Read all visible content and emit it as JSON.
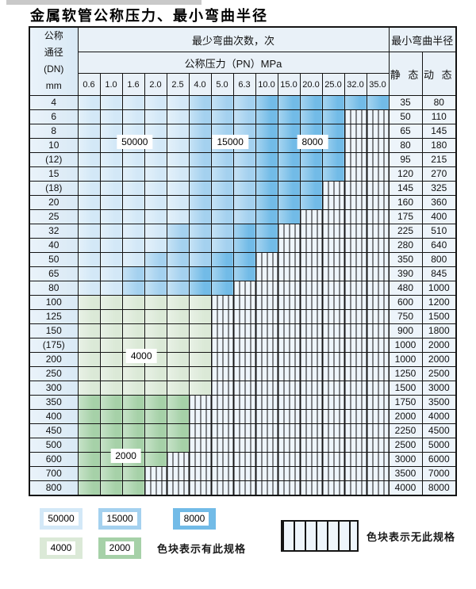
{
  "title": "金属软管公称压力、最小弯曲半径",
  "table": {
    "corner_header_lines": [
      "公称",
      "通径",
      "(DN)",
      "mm"
    ],
    "bend_cycles_header": "最少弯曲次数，次",
    "pressure_header": "公称压力（PN）MPa",
    "pressure_columns": [
      "0.6",
      "1.0",
      "1.6",
      "2.0",
      "2.5",
      "4.0",
      "5.0",
      "6.3",
      "10.0",
      "15.0",
      "20.0",
      "25.0",
      "32.0",
      "35.0"
    ],
    "radius_header": "最小弯曲半径",
    "static_header": "静 态",
    "dynamic_header": "动 态",
    "rows": [
      {
        "dn": "4",
        "bands": [
          {
            "zone": "50000",
            "from": 1,
            "to": 5
          },
          {
            "zone": "15000",
            "from": 6,
            "to": 8
          },
          {
            "zone": "8000",
            "from": 9,
            "to": 14
          }
        ],
        "static": "35",
        "dynamic": "80"
      },
      {
        "dn": "6",
        "bands": [
          {
            "zone": "50000",
            "from": 1,
            "to": 5
          },
          {
            "zone": "15000",
            "from": 6,
            "to": 8
          },
          {
            "zone": "8000",
            "from": 9,
            "to": 12
          }
        ],
        "static": "50",
        "dynamic": "110"
      },
      {
        "dn": "8",
        "bands": [
          {
            "zone": "50000",
            "from": 1,
            "to": 5
          },
          {
            "zone": "15000",
            "from": 6,
            "to": 8
          },
          {
            "zone": "8000",
            "from": 9,
            "to": 12
          }
        ],
        "static": "65",
        "dynamic": "145"
      },
      {
        "dn": "10",
        "bands": [
          {
            "zone": "50000",
            "from": 1,
            "to": 5
          },
          {
            "zone": "15000",
            "from": 6,
            "to": 8
          },
          {
            "zone": "8000",
            "from": 9,
            "to": 12
          }
        ],
        "static": "80",
        "dynamic": "180"
      },
      {
        "dn": "(12)",
        "bands": [
          {
            "zone": "50000",
            "from": 1,
            "to": 5
          },
          {
            "zone": "15000",
            "from": 6,
            "to": 8
          },
          {
            "zone": "8000",
            "from": 9,
            "to": 12
          }
        ],
        "static": "95",
        "dynamic": "215"
      },
      {
        "dn": "15",
        "bands": [
          {
            "zone": "50000",
            "from": 1,
            "to": 5
          },
          {
            "zone": "15000",
            "from": 6,
            "to": 8
          },
          {
            "zone": "8000",
            "from": 9,
            "to": 12
          }
        ],
        "static": "120",
        "dynamic": "270"
      },
      {
        "dn": "(18)",
        "bands": [
          {
            "zone": "50000",
            "from": 1,
            "to": 5
          },
          {
            "zone": "15000",
            "from": 6,
            "to": 8
          },
          {
            "zone": "8000",
            "from": 9,
            "to": 11
          }
        ],
        "static": "145",
        "dynamic": "325"
      },
      {
        "dn": "20",
        "bands": [
          {
            "zone": "50000",
            "from": 1,
            "to": 5
          },
          {
            "zone": "15000",
            "from": 6,
            "to": 8
          },
          {
            "zone": "8000",
            "from": 9,
            "to": 11
          }
        ],
        "static": "160",
        "dynamic": "360"
      },
      {
        "dn": "25",
        "bands": [
          {
            "zone": "50000",
            "from": 1,
            "to": 5
          },
          {
            "zone": "15000",
            "from": 6,
            "to": 8
          },
          {
            "zone": "8000",
            "from": 9,
            "to": 10
          }
        ],
        "static": "175",
        "dynamic": "400"
      },
      {
        "dn": "32",
        "bands": [
          {
            "zone": "50000",
            "from": 1,
            "to": 4
          },
          {
            "zone": "15000",
            "from": 5,
            "to": 7
          },
          {
            "zone": "8000",
            "from": 8,
            "to": 9
          }
        ],
        "static": "225",
        "dynamic": "510"
      },
      {
        "dn": "40",
        "bands": [
          {
            "zone": "50000",
            "from": 1,
            "to": 4
          },
          {
            "zone": "15000",
            "from": 5,
            "to": 7
          },
          {
            "zone": "8000",
            "from": 8,
            "to": 9
          }
        ],
        "static": "280",
        "dynamic": "640"
      },
      {
        "dn": "50",
        "bands": [
          {
            "zone": "50000",
            "from": 1,
            "to": 3
          },
          {
            "zone": "15000",
            "from": 4,
            "to": 6
          },
          {
            "zone": "8000",
            "from": 7,
            "to": 8
          }
        ],
        "static": "350",
        "dynamic": "800"
      },
      {
        "dn": "65",
        "bands": [
          {
            "zone": "50000",
            "from": 1,
            "to": 2
          },
          {
            "zone": "15000",
            "from": 3,
            "to": 5
          },
          {
            "zone": "8000",
            "from": 6,
            "to": 8
          }
        ],
        "static": "390",
        "dynamic": "845"
      },
      {
        "dn": "80",
        "bands": [
          {
            "zone": "50000",
            "from": 1,
            "to": 2
          },
          {
            "zone": "15000",
            "from": 3,
            "to": 5
          },
          {
            "zone": "8000",
            "from": 6,
            "to": 7
          }
        ],
        "static": "480",
        "dynamic": "1000"
      },
      {
        "dn": "100",
        "bands": [
          {
            "zone": "4000",
            "from": 1,
            "to": 6
          }
        ],
        "static": "600",
        "dynamic": "1200"
      },
      {
        "dn": "125",
        "bands": [
          {
            "zone": "4000",
            "from": 1,
            "to": 6
          }
        ],
        "static": "750",
        "dynamic": "1500"
      },
      {
        "dn": "150",
        "bands": [
          {
            "zone": "4000",
            "from": 1,
            "to": 6
          }
        ],
        "static": "900",
        "dynamic": "1800"
      },
      {
        "dn": "(175)",
        "bands": [
          {
            "zone": "4000",
            "from": 1,
            "to": 6
          }
        ],
        "static": "1000",
        "dynamic": "2000"
      },
      {
        "dn": "200",
        "bands": [
          {
            "zone": "4000",
            "from": 1,
            "to": 6
          }
        ],
        "static": "1000",
        "dynamic": "2000"
      },
      {
        "dn": "250",
        "bands": [
          {
            "zone": "4000",
            "from": 1,
            "to": 6
          }
        ],
        "static": "1250",
        "dynamic": "2500"
      },
      {
        "dn": "300",
        "bands": [
          {
            "zone": "4000",
            "from": 1,
            "to": 6
          }
        ],
        "static": "1500",
        "dynamic": "3000"
      },
      {
        "dn": "350",
        "bands": [
          {
            "zone": "2000",
            "from": 1,
            "to": 5
          }
        ],
        "static": "1750",
        "dynamic": "3500"
      },
      {
        "dn": "400",
        "bands": [
          {
            "zone": "2000",
            "from": 1,
            "to": 5
          }
        ],
        "static": "2000",
        "dynamic": "4000"
      },
      {
        "dn": "450",
        "bands": [
          {
            "zone": "2000",
            "from": 1,
            "to": 5
          }
        ],
        "static": "2250",
        "dynamic": "4500"
      },
      {
        "dn": "500",
        "bands": [
          {
            "zone": "2000",
            "from": 1,
            "to": 5
          }
        ],
        "static": "2500",
        "dynamic": "5000"
      },
      {
        "dn": "600",
        "bands": [
          {
            "zone": "2000",
            "from": 1,
            "to": 4
          }
        ],
        "static": "3000",
        "dynamic": "6000"
      },
      {
        "dn": "700",
        "bands": [
          {
            "zone": "2000",
            "from": 1,
            "to": 3
          }
        ],
        "static": "3500",
        "dynamic": "7000"
      },
      {
        "dn": "800",
        "bands": [
          {
            "zone": "2000",
            "from": 1,
            "to": 3
          }
        ],
        "static": "4000",
        "dynamic": "8000"
      }
    ]
  },
  "zone_labels": [
    {
      "text": "50000",
      "dn": "10",
      "col": 3.1
    },
    {
      "text": "15000",
      "dn": "10",
      "col": 7.4
    },
    {
      "text": "8000",
      "dn": "10",
      "col": 11.1
    },
    {
      "text": "4000",
      "dn": "200",
      "col": 3.4
    },
    {
      "text": "2000",
      "dn": "600",
      "col": 2.7
    }
  ],
  "legend": {
    "swatches": [
      {
        "label": "50000",
        "zone": "50000",
        "row": 1
      },
      {
        "label": "15000",
        "zone": "15000",
        "row": 1
      },
      {
        "label": "8000",
        "zone": "8000",
        "row": 1
      },
      {
        "label": "4000",
        "zone": "4000",
        "row": 2
      },
      {
        "label": "2000",
        "zone": "2000",
        "row": 2
      }
    ],
    "has_spec_text": "色块表示有此规格",
    "no_spec_text": "色块表示无此规格"
  },
  "colors": {
    "zone_50000": "#d3e8f7",
    "zone_15000": "#a4d1ef",
    "zone_8000": "#72bbe7",
    "zone_4000": "#dbe9d7",
    "zone_2000": "#a6d1a8",
    "hatch_fill": "#eef5fb",
    "grid_line": "#141414",
    "header_bg": "#e9f1f8",
    "dn_col_from": "#eaf3fa",
    "dn_col_to": "#d9e9f5",
    "value_col_bg": "#edf4fa"
  }
}
